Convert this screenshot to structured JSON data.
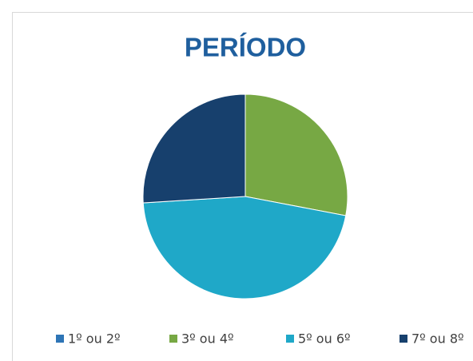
{
  "chart_data": {
    "type": "pie",
    "title": "PERÍODO",
    "categories": [
      "1º ou 2º",
      "3º ou 4º",
      "5º ou 6º",
      "7º ou 8º"
    ],
    "values": [
      0,
      28,
      46,
      26
    ],
    "colors": [
      "#2e75b6",
      "#77a844",
      "#1fa8c8",
      "#17406d"
    ],
    "legend": "bottom"
  }
}
